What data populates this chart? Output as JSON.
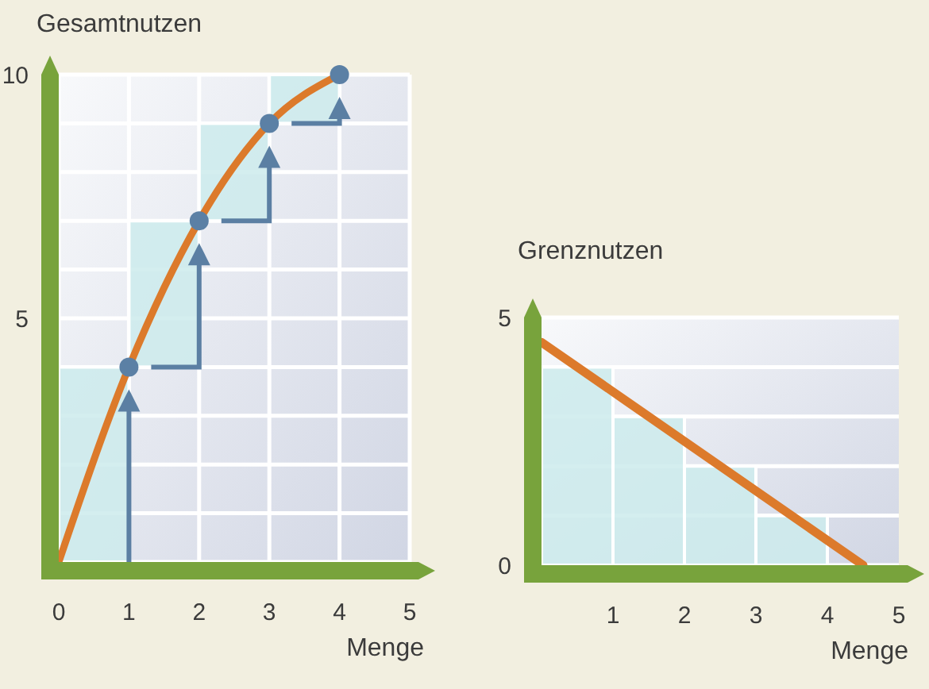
{
  "chart_data": [
    {
      "type": "line",
      "ylabel": "Gesamtnutzen",
      "xlabel": "Menge",
      "xlim": [
        0,
        5
      ],
      "ylim": [
        0,
        10
      ],
      "xticks": [
        0,
        1,
        2,
        3,
        4,
        5
      ],
      "yticks": [
        {
          "value": 1,
          "label": null
        },
        {
          "value": 2,
          "label": null
        },
        {
          "value": 3,
          "label": null
        },
        {
          "value": 4,
          "label": null
        },
        5,
        {
          "value": 6,
          "label": null
        },
        {
          "value": 7,
          "label": null
        },
        {
          "value": 8,
          "label": null
        },
        {
          "value": 9,
          "label": null
        },
        10
      ],
      "grid": true,
      "series": [
        {
          "type": "bar",
          "x": [
            0.5,
            1.5,
            2.5,
            3.5
          ],
          "base": [
            0,
            4,
            7,
            9
          ],
          "values": [
            4,
            3,
            2,
            1
          ],
          "color": "#cdebec"
        },
        {
          "x": [
            0,
            1,
            2,
            3,
            4
          ],
          "values": [
            0,
            4,
            7,
            9,
            10
          ],
          "color": "#dc7a2b"
        },
        {
          "type": "scatter",
          "x": [
            1,
            2,
            3,
            4
          ],
          "values": [
            4,
            7,
            9,
            10
          ],
          "color": "#5b80a5",
          "marker": "circle"
        }
      ]
    },
    {
      "type": "line",
      "ylabel": "Grenznutzen",
      "xlabel": "Menge",
      "xlim": [
        0,
        5
      ],
      "ylim": [
        0,
        5
      ],
      "xticks": [
        1,
        2,
        3,
        4,
        5
      ],
      "yticks": [
        0,
        {
          "value": 1,
          "label": null
        },
        {
          "value": 2,
          "label": null
        },
        {
          "value": 3,
          "label": null
        },
        {
          "value": 4,
          "label": null
        },
        5
      ],
      "grid": "y",
      "series": [
        {
          "type": "histogram",
          "bins": [
            0,
            1,
            2,
            3,
            4
          ],
          "values": [
            4,
            3,
            2,
            1
          ],
          "color": "#cdebec"
        },
        {
          "x": [
            0,
            4.5
          ],
          "values": [
            4.5,
            0
          ],
          "color": "#dc7a2b"
        }
      ]
    }
  ]
}
